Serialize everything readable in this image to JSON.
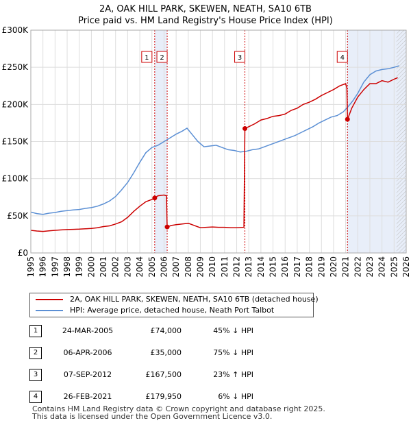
{
  "chart_data": {
    "type": "line",
    "title": "2A, OAK HILL PARK, SKEWEN, NEATH, SA10 6TB",
    "subtitle": "Price paid vs. HM Land Registry's House Price Index (HPI)",
    "xlim": [
      1995,
      2026
    ],
    "ylim": [
      0,
      300000
    ],
    "x_ticks": [
      1995,
      1996,
      1997,
      1998,
      1999,
      2000,
      2001,
      2002,
      2003,
      2004,
      2005,
      2006,
      2007,
      2008,
      2009,
      2010,
      2011,
      2012,
      2013,
      2014,
      2015,
      2016,
      2017,
      2018,
      2019,
      2020,
      2021,
      2022,
      2023,
      2024,
      2025,
      2026
    ],
    "x_tick_labels": [
      "1995",
      "1996",
      "1997",
      "1998",
      "1999",
      "2000",
      "2001",
      "2002",
      "2003",
      "2004",
      "2005",
      "2006",
      "2007",
      "2008",
      "2009",
      "2010",
      "2011",
      "2012",
      "2013",
      "2014",
      "2015",
      "2016",
      "2017",
      "2018",
      "2019",
      "2020",
      "2021",
      "2022",
      "2023",
      "2024",
      "2025",
      "2026"
    ],
    "y_ticks": [
      0,
      50000,
      100000,
      150000,
      200000,
      250000,
      300000
    ],
    "y_tick_labels": [
      "£0",
      "£50K",
      "£100K",
      "£150K",
      "£200K",
      "£250K",
      "£300K"
    ],
    "grid": true,
    "series": [
      {
        "name": "2A, OAK HILL PARK, SKEWEN, NEATH, SA10 6TB (detached house)",
        "color": "#cc0000",
        "points": [
          [
            1995,
            30500
          ],
          [
            1995.5,
            29500
          ],
          [
            1996,
            29000
          ],
          [
            1996.5,
            29800
          ],
          [
            1997,
            30500
          ],
          [
            1997.5,
            31000
          ],
          [
            1998,
            31500
          ],
          [
            1998.5,
            31800
          ],
          [
            1999,
            32000
          ],
          [
            1999.5,
            32500
          ],
          [
            2000,
            33000
          ],
          [
            2000.5,
            34000
          ],
          [
            2001,
            35500
          ],
          [
            2001.5,
            36500
          ],
          [
            2002,
            39000
          ],
          [
            2002.5,
            42000
          ],
          [
            2003,
            48000
          ],
          [
            2003.5,
            56000
          ],
          [
            2004,
            63000
          ],
          [
            2004.5,
            69000
          ],
          [
            2005,
            72000
          ],
          [
            2005.23,
            74000
          ],
          [
            2005.5,
            77000
          ],
          [
            2006,
            78000
          ],
          [
            2006.2,
            77000
          ],
          [
            2006.26,
            35000
          ],
          [
            2006.6,
            37000
          ],
          [
            2007,
            38000
          ],
          [
            2007.5,
            39000
          ],
          [
            2008,
            40000
          ],
          [
            2008.5,
            37000
          ],
          [
            2009,
            34000
          ],
          [
            2009.5,
            34500
          ],
          [
            2010,
            35000
          ],
          [
            2010.5,
            34500
          ],
          [
            2011,
            34500
          ],
          [
            2011.5,
            34000
          ],
          [
            2012,
            34000
          ],
          [
            2012.6,
            34500
          ],
          [
            2012.68,
            167500
          ],
          [
            2013,
            170000
          ],
          [
            2013.5,
            174000
          ],
          [
            2014,
            179000
          ],
          [
            2014.5,
            181000
          ],
          [
            2015,
            184000
          ],
          [
            2015.5,
            185000
          ],
          [
            2016,
            187000
          ],
          [
            2016.5,
            192000
          ],
          [
            2017,
            195000
          ],
          [
            2017.5,
            200000
          ],
          [
            2018,
            203000
          ],
          [
            2018.5,
            207000
          ],
          [
            2019,
            212000
          ],
          [
            2019.5,
            216000
          ],
          [
            2020,
            220000
          ],
          [
            2020.5,
            225000
          ],
          [
            2021,
            228000
          ],
          [
            2021.1,
            222000
          ],
          [
            2021.15,
            179950
          ],
          [
            2021.5,
            195000
          ],
          [
            2022,
            210000
          ],
          [
            2022.5,
            220000
          ],
          [
            2023,
            228000
          ],
          [
            2023.5,
            228000
          ],
          [
            2024,
            232000
          ],
          [
            2024.5,
            230000
          ],
          [
            2025,
            234000
          ],
          [
            2025.3,
            236000
          ]
        ]
      },
      {
        "name": "HPI: Average price, detached house, Neath Port Talbot",
        "color": "#5b8fd4",
        "points": [
          [
            1995,
            55000
          ],
          [
            1995.5,
            53000
          ],
          [
            1996,
            52000
          ],
          [
            1996.5,
            53500
          ],
          [
            1997,
            54500
          ],
          [
            1997.5,
            56000
          ],
          [
            1998,
            57000
          ],
          [
            1998.5,
            58000
          ],
          [
            1999,
            58500
          ],
          [
            1999.5,
            60000
          ],
          [
            2000,
            61000
          ],
          [
            2000.5,
            63000
          ],
          [
            2001,
            66000
          ],
          [
            2001.5,
            70000
          ],
          [
            2002,
            76000
          ],
          [
            2002.5,
            85000
          ],
          [
            2003,
            95000
          ],
          [
            2003.5,
            108000
          ],
          [
            2004,
            122000
          ],
          [
            2004.5,
            135000
          ],
          [
            2005,
            142000
          ],
          [
            2005.5,
            145000
          ],
          [
            2006,
            150000
          ],
          [
            2006.5,
            155000
          ],
          [
            2007,
            160000
          ],
          [
            2007.5,
            164000
          ],
          [
            2007.9,
            168000
          ],
          [
            2008.3,
            160000
          ],
          [
            2008.8,
            150000
          ],
          [
            2009.3,
            143000
          ],
          [
            2009.8,
            144000
          ],
          [
            2010.3,
            145000
          ],
          [
            2010.8,
            142000
          ],
          [
            2011.3,
            139000
          ],
          [
            2011.8,
            138000
          ],
          [
            2012.3,
            136000
          ],
          [
            2012.8,
            137000
          ],
          [
            2013.3,
            139000
          ],
          [
            2013.8,
            140000
          ],
          [
            2014.3,
            143000
          ],
          [
            2014.8,
            146000
          ],
          [
            2015.3,
            149000
          ],
          [
            2015.8,
            152000
          ],
          [
            2016.3,
            155000
          ],
          [
            2016.8,
            158000
          ],
          [
            2017.3,
            162000
          ],
          [
            2017.8,
            166000
          ],
          [
            2018.3,
            170000
          ],
          [
            2018.8,
            175000
          ],
          [
            2019.3,
            179000
          ],
          [
            2019.8,
            183000
          ],
          [
            2020.3,
            185000
          ],
          [
            2020.8,
            190000
          ],
          [
            2021.2,
            197000
          ],
          [
            2021.6,
            205000
          ],
          [
            2022,
            215000
          ],
          [
            2022.5,
            230000
          ],
          [
            2023,
            240000
          ],
          [
            2023.5,
            245000
          ],
          [
            2024,
            247000
          ],
          [
            2024.5,
            248000
          ],
          [
            2025,
            250000
          ],
          [
            2025.4,
            252000
          ]
        ]
      }
    ],
    "sales": [
      {
        "id": "1",
        "x": 2005.23,
        "y": 74000
      },
      {
        "id": "2",
        "x": 2006.26,
        "y": 35000
      },
      {
        "id": "3",
        "x": 2012.68,
        "y": 167500
      },
      {
        "id": "4",
        "x": 2021.15,
        "y": 179950
      }
    ],
    "shaded_spans": [
      [
        2005.23,
        2006.26
      ],
      [
        2021.15,
        2026
      ]
    ],
    "hatched_from": 2025.2
  },
  "legend": {
    "items": [
      {
        "label": "2A, OAK HILL PARK, SKEWEN, NEATH, SA10 6TB (detached house)",
        "color": "#cc0000"
      },
      {
        "label": "HPI: Average price, detached house, Neath Port Talbot",
        "color": "#5b8fd4"
      }
    ]
  },
  "sales_table": [
    {
      "id": "1",
      "date": "24-MAR-2005",
      "price": "£74,000",
      "hpi": "45% ↓ HPI"
    },
    {
      "id": "2",
      "date": "06-APR-2006",
      "price": "£35,000",
      "hpi": "75% ↓ HPI"
    },
    {
      "id": "3",
      "date": "07-SEP-2012",
      "price": "£167,500",
      "hpi": "23% ↑ HPI"
    },
    {
      "id": "4",
      "date": "26-FEB-2021",
      "price": "£179,950",
      "hpi": "6% ↓ HPI"
    }
  ],
  "footer": {
    "line1": "Contains HM Land Registry data © Crown copyright and database right 2025.",
    "line2": "This data is licensed under the Open Government Licence v3.0."
  }
}
